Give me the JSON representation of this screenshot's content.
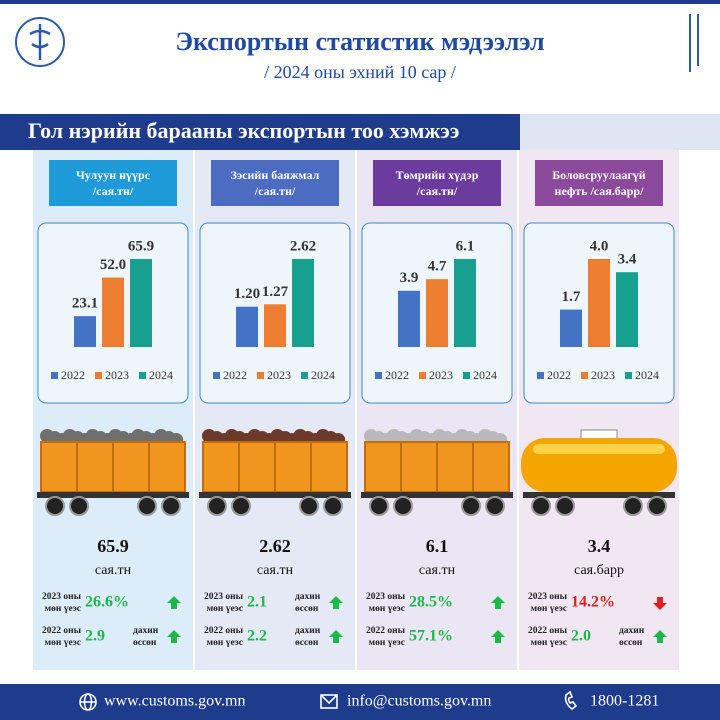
{
  "header": {
    "title": "Экспортын статистик мэдээлэл",
    "subtitle": "/ 2024 оны эхний 10 сар /"
  },
  "section_title": "Гол нэрийн барааны экспортын тоо хэмжээ",
  "chart_data": [
    {
      "type": "bar",
      "series": [
        {
          "name": "2022",
          "color": "#4472c4",
          "values": [
            23.1
          ]
        },
        {
          "name": "2023",
          "color": "#ed7d31",
          "values": [
            52.0
          ],
          "value_labels": [
            "52.0"
          ]
        },
        {
          "name": "2024",
          "color": "#17a08f",
          "values": [
            65.9
          ]
        }
      ]
    },
    {
      "type": "bar",
      "series": [
        {
          "name": "2022",
          "color": "#4472c4",
          "values": [
            1.2
          ],
          "value_labels": [
            "1.20"
          ]
        },
        {
          "name": "2023",
          "color": "#ed7d31",
          "values": [
            1.27
          ]
        },
        {
          "name": "2024",
          "color": "#17a08f",
          "values": [
            2.62
          ]
        }
      ]
    },
    {
      "type": "bar",
      "series": [
        {
          "name": "2022",
          "color": "#4472c4",
          "values": [
            3.9
          ]
        },
        {
          "name": "2023",
          "color": "#ed7d31",
          "values": [
            4.7
          ]
        },
        {
          "name": "2024",
          "color": "#17a08f",
          "values": [
            6.1
          ]
        }
      ]
    },
    {
      "type": "bar",
      "series": [
        {
          "name": "2022",
          "color": "#4472c4",
          "values": [
            1.7
          ]
        },
        {
          "name": "2023",
          "color": "#ed7d31",
          "values": [
            4.0
          ],
          "value_labels": [
            "4.0"
          ]
        },
        {
          "name": "2024",
          "color": "#17a08f",
          "values": [
            3.4
          ]
        }
      ]
    }
  ],
  "panels": [
    {
      "label": [
        "Чулуун нүүрс",
        "/сая.тн/"
      ],
      "label_color": "#1f9ad8",
      "background": "#dcedf9",
      "wagon": "open",
      "cargo_color": "#6f6f6f",
      "total": "65.9",
      "unit": "сая.тн",
      "compare": [
        {
          "label": [
            "2023 оны",
            "мөн үеэс"
          ],
          "value": "26.6%",
          "direction": "up"
        },
        {
          "label": [
            "2022 оны",
            "мөн үеэс"
          ],
          "value": "2.9",
          "note": [
            "дахин",
            "өссөн"
          ],
          "direction": "up"
        }
      ]
    },
    {
      "label": [
        "Зэсийн баяжмал",
        "/сая.тн/"
      ],
      "label_color": "#4b6cc1",
      "background": "#e5e9f5",
      "wagon": "open",
      "cargo_color": "#6b3a2a",
      "total": "2.62",
      "unit": "сая.тн",
      "compare": [
        {
          "label": [
            "2023 оны",
            "мөн үеэс"
          ],
          "value": "2.1",
          "note": [
            "дахин",
            "өссөн"
          ],
          "direction": "up"
        },
        {
          "label": [
            "2022 оны",
            "мөн үеэс"
          ],
          "value": "2.2",
          "note": [
            "дахин",
            "өссөн"
          ],
          "direction": "up"
        }
      ]
    },
    {
      "label": [
        "Төмрийн хүдэр",
        "/сая.тн/"
      ],
      "label_color": "#6b3c9e",
      "background": "#ebe6f4",
      "wagon": "open",
      "cargo_color": "#b9b9bd",
      "total": "6.1",
      "unit": "сая.тн",
      "compare": [
        {
          "label": [
            "2023 оны",
            "мөн үеэс"
          ],
          "value": "28.5%",
          "direction": "up"
        },
        {
          "label": [
            "2022 оны",
            "мөн үеэс"
          ],
          "value": "57.1%",
          "direction": "up"
        }
      ]
    },
    {
      "label": [
        "Боловсруулаагүй",
        "нефть /сая.барр/"
      ],
      "label_color": "#8c4a9c",
      "background": "#f1e7f3",
      "wagon": "tank",
      "cargo_color": "#f5a500",
      "total": "3.4",
      "unit": "сая.барр",
      "compare": [
        {
          "label": [
            "2023 оны",
            "мөн үеэс"
          ],
          "value": "14.2%",
          "direction": "down"
        },
        {
          "label": [
            "2022 оны",
            "мөн үеэс"
          ],
          "value": "2.0",
          "note": [
            "дахин",
            "өссөн"
          ],
          "direction": "up"
        }
      ]
    }
  ],
  "footer": {
    "website": "www.customs.gov.mn",
    "email": "info@customs.gov.mn",
    "phone": "1800-1281"
  }
}
